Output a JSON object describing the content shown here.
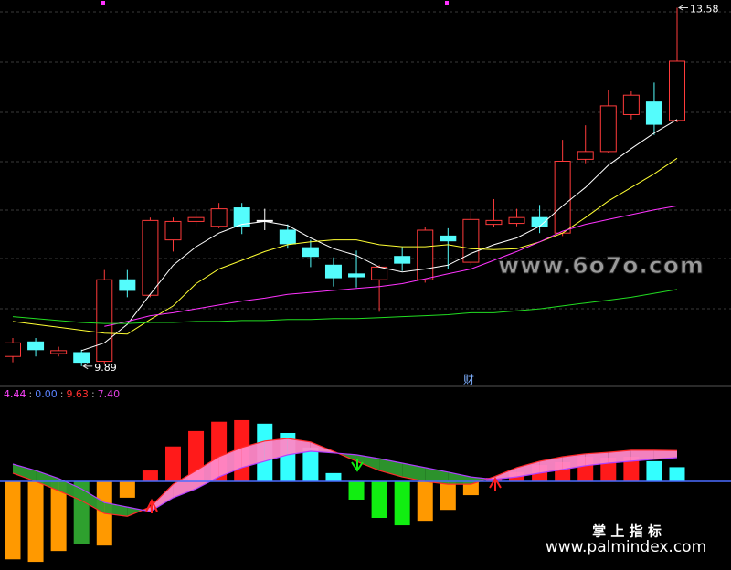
{
  "chart_data": [
    {
      "type": "candlestick",
      "open": [
        9.99,
        10.14,
        10.02,
        10.03,
        9.94,
        10.78,
        10.62,
        11.19,
        11.38,
        11.33,
        11.52,
        11.39,
        11.29,
        11.11,
        10.93,
        10.84,
        10.78,
        11.02,
        10.78,
        11.23,
        10.96,
        11.35,
        11.36,
        11.42,
        11.26,
        12.02,
        12.1,
        12.48,
        12.61,
        12.42
      ],
      "high": [
        10.18,
        10.18,
        10.09,
        10.06,
        10.88,
        10.88,
        11.42,
        11.42,
        11.51,
        11.57,
        11.57,
        11.51,
        11.35,
        11.19,
        11.01,
        11.08,
        10.93,
        11.12,
        11.32,
        11.31,
        11.51,
        11.61,
        11.51,
        11.55,
        12.22,
        12.37,
        12.73,
        12.72,
        12.81,
        13.58
      ],
      "low": [
        9.93,
        9.99,
        9.99,
        9.89,
        9.91,
        10.6,
        10.6,
        11.07,
        11.33,
        11.31,
        11.25,
        11.29,
        11.1,
        10.91,
        10.71,
        10.7,
        10.45,
        10.87,
        10.75,
        10.89,
        10.93,
        11.32,
        11.33,
        11.26,
        11.23,
        11.98,
        12.08,
        12.43,
        12.27,
        12.4
      ],
      "close": [
        10.13,
        10.06,
        10.05,
        9.93,
        10.78,
        10.67,
        11.39,
        11.38,
        11.42,
        11.51,
        11.33,
        11.39,
        11.15,
        11.02,
        10.8,
        10.81,
        10.91,
        10.95,
        11.29,
        11.18,
        11.4,
        11.39,
        11.42,
        11.33,
        12.0,
        12.1,
        12.57,
        12.68,
        12.38,
        13.03
      ],
      "up_color": "#ff3b3b",
      "down_color": "#54fcfc",
      "doji_color": "#ffffff",
      "series": [
        {
          "color": "#ffffff",
          "values": [
            null,
            null,
            null,
            10.05,
            10.13,
            10.32,
            10.63,
            10.93,
            11.12,
            11.26,
            11.35,
            11.38,
            11.34,
            11.21,
            11.1,
            11.03,
            10.91,
            10.86,
            10.89,
            10.93,
            11.05,
            11.14,
            11.21,
            11.33,
            11.54,
            11.73,
            11.96,
            12.13,
            12.29,
            12.43
          ]
        },
        {
          "color": "#ffff33",
          "values": [
            10.35,
            10.32,
            10.29,
            10.26,
            10.23,
            10.22,
            10.37,
            10.51,
            10.74,
            10.89,
            10.98,
            11.07,
            11.14,
            11.17,
            11.19,
            11.19,
            11.14,
            11.12,
            11.12,
            11.14,
            11.1,
            11.09,
            11.1,
            11.17,
            11.26,
            11.42,
            11.59,
            11.73,
            11.87,
            12.03
          ]
        },
        {
          "color": "#ff33ff",
          "values": [
            null,
            null,
            null,
            null,
            10.3,
            10.35,
            10.41,
            10.44,
            10.48,
            10.52,
            10.56,
            10.59,
            10.63,
            10.65,
            10.67,
            10.69,
            10.71,
            10.74,
            10.79,
            10.84,
            10.89,
            10.98,
            11.07,
            11.17,
            11.28,
            11.35,
            11.4,
            11.45,
            11.5,
            11.54
          ]
        },
        {
          "color": "#22dd22",
          "values": [
            10.4,
            10.38,
            10.36,
            10.34,
            10.33,
            10.33,
            10.34,
            10.34,
            10.35,
            10.35,
            10.36,
            10.36,
            10.37,
            10.37,
            10.38,
            10.38,
            10.39,
            10.4,
            10.41,
            10.42,
            10.44,
            10.44,
            10.46,
            10.48,
            10.51,
            10.54,
            10.57,
            10.6,
            10.64,
            10.68
          ]
        }
      ],
      "ylim": [
        9.71,
        13.66
      ],
      "annotation": "财",
      "watermark": "www.6o7o.com"
    },
    {
      "type": "bar",
      "values": [
        -24.3,
        -25.1,
        -21.7,
        -19.4,
        -20.0,
        -5.1,
        3.4,
        10.9,
        15.7,
        18.6,
        19.1,
        18.0,
        15.1,
        10.6,
        2.6,
        -5.7,
        -11.4,
        -13.7,
        -12.3,
        -8.9,
        -4.3,
        1.1,
        2.9,
        5.1,
        6.0,
        7.7,
        7.4,
        7.7,
        6.3,
        4.44
      ],
      "colors": [
        "#ff9900",
        "#ff9900",
        "#ff9900",
        "#2ea02e",
        "#ff9900",
        "#ff9900",
        "#ff1a1a",
        "#ff1a1a",
        "#ff1a1a",
        "#ff1a1a",
        "#ff1a1a",
        "#33ffff",
        "#33ffff",
        "#33ffff",
        "#33ffff",
        "#11ee11",
        "#11ee11",
        "#11ee11",
        "#ff9900",
        "#ff9900",
        "#ff9900",
        "#ff1a1a",
        "#ff1a1a",
        "#ff1a1a",
        "#ff1a1a",
        "#ff1a1a",
        "#ff1a1a",
        "#ff1a1a",
        "#33ffff",
        "#33ffff"
      ],
      "lines": [
        {
          "color": "#ff2a2a",
          "values": [
            2.6,
            0,
            -2.9,
            -6.0,
            -10.0,
            -10.9,
            -8.0,
            -0.9,
            3.4,
            7.7,
            10.6,
            12.6,
            13.4,
            12.3,
            9.4,
            6.3,
            3.4,
            1.4,
            0,
            -0.9,
            -0.9,
            1.4,
            4.3,
            6.3,
            7.7,
            8.6,
            9.1,
            9.7,
            9.7,
            9.63
          ]
        },
        {
          "color": "#b040ff",
          "values": [
            5.4,
            3.4,
            0.9,
            -2.3,
            -6.6,
            -8.0,
            -9.4,
            -5.1,
            -2.3,
            1.4,
            4.3,
            6.3,
            8.3,
            9.4,
            8.9,
            8.3,
            7.1,
            5.7,
            4.3,
            2.9,
            1.4,
            0.6,
            1.4,
            2.6,
            3.7,
            4.9,
            5.7,
            6.3,
            6.9,
            7.4
          ]
        }
      ],
      "fill_up": "#ff88c8",
      "fill_down": "#2e9a2e",
      "zero_color": "#4a6cff",
      "ylim": [
        -26.5,
        24.5
      ],
      "readout": [
        {
          "text": "4.44",
          "color": "#ff44ff"
        },
        {
          "text": "0.00",
          "color": "#5a82ff"
        },
        {
          "text": "9.63",
          "color": "#ff3030"
        },
        {
          "text": "7.40",
          "color": "#e040e0"
        }
      ],
      "separator": ":"
    }
  ],
  "footer": {
    "title": "掌 上 指 标",
    "url": "www.palmindex.com"
  }
}
